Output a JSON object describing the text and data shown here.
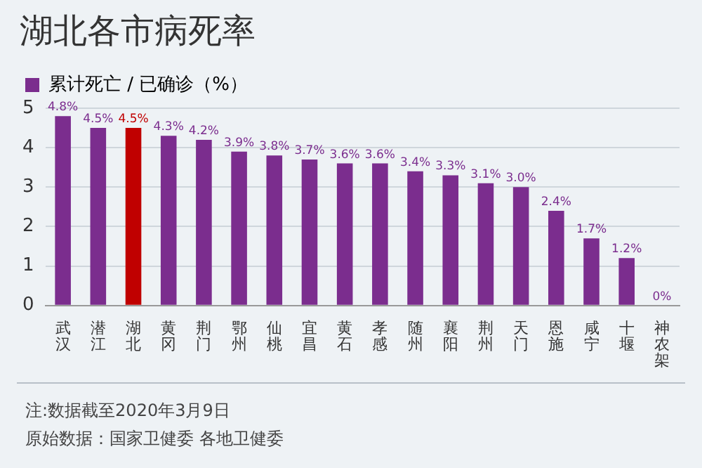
{
  "chart_data": {
    "type": "bar",
    "title": "湖北各市病死率",
    "categories": [
      "武汉",
      "潜江",
      "湖北",
      "黄冈",
      "荆门",
      "鄂州",
      "仙桃",
      "宜昌",
      "黄石",
      "孝感",
      "随州",
      "襄阳",
      "荆州",
      "天门",
      "恩施",
      "咸宁",
      "十堰",
      "神农架"
    ],
    "series": [
      {
        "name": "累计死亡 / 已确诊（%）",
        "color": "#7b2d8e",
        "colors": [
          "#7b2d8e",
          "#7b2d8e",
          "#c00000",
          "#7b2d8e",
          "#7b2d8e",
          "#7b2d8e",
          "#7b2d8e",
          "#7b2d8e",
          "#7b2d8e",
          "#7b2d8e",
          "#7b2d8e",
          "#7b2d8e",
          "#7b2d8e",
          "#7b2d8e",
          "#7b2d8e",
          "#7b2d8e",
          "#7b2d8e",
          "#7b2d8e"
        ],
        "values": [
          4.8,
          4.5,
          4.5,
          4.3,
          4.2,
          3.9,
          3.8,
          3.7,
          3.6,
          3.6,
          3.4,
          3.3,
          3.1,
          3.0,
          2.4,
          1.7,
          1.2,
          0
        ],
        "value_labels": [
          "4.8%",
          "4.5%",
          "4.5%",
          "4.3%",
          "4.2%",
          "3.9%",
          "3.8%",
          "3.7%",
          "3.6%",
          "3.6%",
          "3.4%",
          "3.3%",
          "3.1%",
          "3.0%",
          "2.4%",
          "1.7%",
          "1.2%",
          "0%"
        ]
      }
    ],
    "ylim": [
      0,
      5
    ],
    "yticks": [
      0,
      1,
      2,
      3,
      4,
      5
    ],
    "grid": "y",
    "legend": "top left",
    "annotations": [
      "注:数据截至2020年3月9日",
      "原始数据：国家卫健委 各地卫健委"
    ]
  }
}
